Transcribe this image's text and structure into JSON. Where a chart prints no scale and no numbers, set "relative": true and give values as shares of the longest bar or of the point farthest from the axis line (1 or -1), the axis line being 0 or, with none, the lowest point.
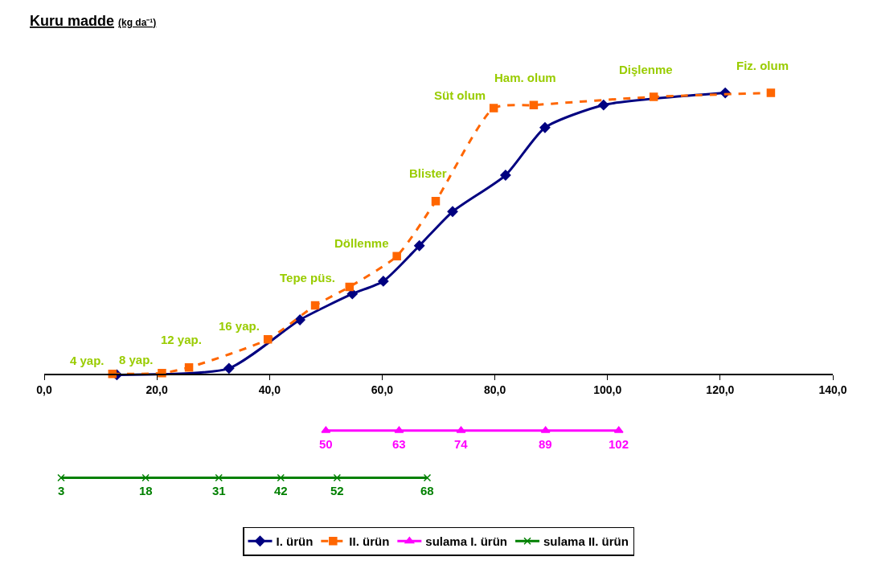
{
  "chart_data": {
    "type": "line",
    "title": "Kuru madde",
    "subtitle": "(kg da⁻¹)",
    "relative": true,
    "xlim": [
      0,
      140
    ],
    "xticks": [
      {
        "value": 0,
        "label": "0,0"
      },
      {
        "value": 20,
        "label": "20,0"
      },
      {
        "value": 40,
        "label": "40,0"
      },
      {
        "value": 60,
        "label": "60,0"
      },
      {
        "value": 80,
        "label": "80,0"
      },
      {
        "value": 100,
        "label": "100,0"
      },
      {
        "value": 120,
        "label": "120,0"
      },
      {
        "value": 140,
        "label": "140,0"
      }
    ],
    "legend": "bottom",
    "series": [
      {
        "name": "I. ürün",
        "color": "#000080",
        "marker": "diamond",
        "line_style": "solid",
        "x": [
          12.9,
          32.8,
          45.4,
          54.7,
          60.2,
          66.6,
          72.5,
          81.9,
          88.9,
          99.3,
          120.9
        ],
        "values": [
          0,
          0.023,
          0.195,
          0.287,
          0.332,
          0.458,
          0.579,
          0.708,
          0.877,
          0.957,
          1.0
        ]
      },
      {
        "name": "II. ürün",
        "color": "#ff6600",
        "marker": "square",
        "line_style": "dashed",
        "x": [
          12.1,
          20.9,
          25.7,
          39.7,
          48.1,
          54.2,
          62.6,
          69.5,
          79.8,
          86.9,
          108.2,
          129.0
        ],
        "values": [
          0.003,
          0.006,
          0.026,
          0.126,
          0.246,
          0.312,
          0.421,
          0.616,
          0.946,
          0.957,
          0.986,
          1.0
        ]
      },
      {
        "name": "sulama I. ürün",
        "color": "#ff00ff",
        "marker": "triangle",
        "line_style": "solid",
        "x": [
          50,
          63,
          74,
          89,
          102
        ],
        "values": [
          -0.198,
          -0.198,
          -0.198,
          -0.198,
          -0.198
        ]
      },
      {
        "name": "sulama II. ürün",
        "color": "#008000",
        "marker": "cross",
        "line_style": "solid",
        "x": [
          3,
          18,
          31,
          42,
          52,
          68
        ],
        "values": [
          -0.365,
          -0.365,
          -0.365,
          -0.365,
          -0.365,
          -0.365
        ]
      }
    ],
    "annotations": [
      {
        "text": "4 yap.",
        "x": 12.1,
        "y": 0.003
      },
      {
        "text": "8 yap.",
        "x": 20.9,
        "y": 0.006
      },
      {
        "text": "12 yap.",
        "x": 25.7,
        "y": 0.026
      },
      {
        "text": "16 yap.",
        "x": 39.7,
        "y": 0.126
      },
      {
        "text": "Tepe püs.",
        "x": 48.1,
        "y": 0.246
      },
      {
        "text": "Döllenme",
        "x": 62.6,
        "y": 0.421
      },
      {
        "text": "Blister",
        "x": 69.5,
        "y": 0.616
      },
      {
        "text": "Süt olum",
        "x": 79.8,
        "y": 0.946
      },
      {
        "text": "Ham. olum",
        "x": 86.9,
        "y": 0.957
      },
      {
        "text": "Dişlenme",
        "x": 108.2,
        "y": 0.986
      },
      {
        "text": "Fiz. olum",
        "x": 129.0,
        "y": 1.0
      },
      {
        "text": "50",
        "x": 50,
        "y": -0.198
      },
      {
        "text": "63",
        "x": 63,
        "y": -0.198
      },
      {
        "text": "74",
        "x": 74,
        "y": -0.198
      },
      {
        "text": "89",
        "x": 89,
        "y": -0.198
      },
      {
        "text": "102",
        "x": 102,
        "y": -0.198
      },
      {
        "text": "3",
        "x": 3,
        "y": -0.365
      },
      {
        "text": "18",
        "x": 18,
        "y": -0.365
      },
      {
        "text": "31",
        "x": 31,
        "y": -0.365
      },
      {
        "text": "42",
        "x": 42,
        "y": -0.365
      },
      {
        "text": "52",
        "x": 52,
        "y": -0.365
      },
      {
        "text": "68",
        "x": 68,
        "y": -0.365
      }
    ]
  }
}
